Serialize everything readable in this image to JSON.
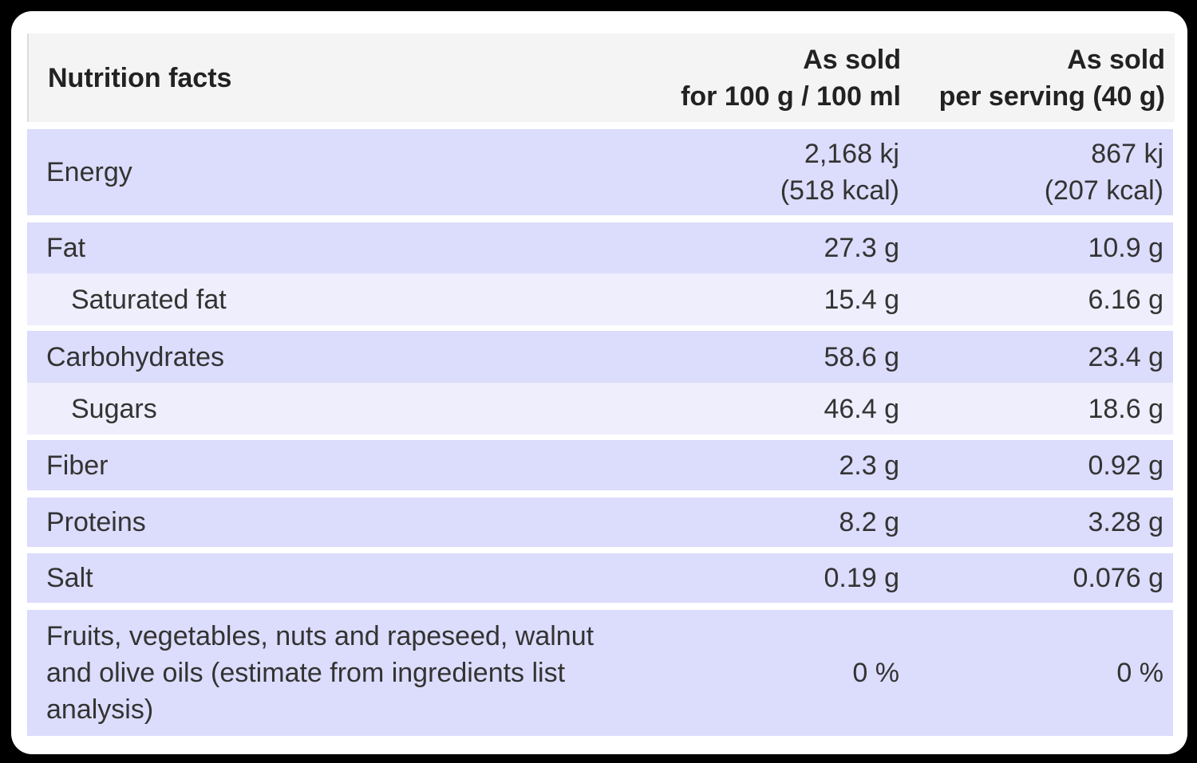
{
  "table": {
    "header": [
      [
        "Nutrition facts"
      ],
      [
        "As sold",
        "for 100 g / 100 ml"
      ],
      [
        "As sold",
        "per serving (40 g)"
      ]
    ],
    "rows": [
      [
        [
          "Energy"
        ],
        [
          "2,168 kj",
          "(518 kcal)"
        ],
        [
          "867 kj",
          "(207 kcal)"
        ]
      ],
      [
        [
          "Fat"
        ],
        [
          "27.3 g"
        ],
        [
          "10.9 g"
        ]
      ],
      [
        [
          "Saturated fat"
        ],
        [
          "15.4 g"
        ],
        [
          "6.16 g"
        ]
      ],
      [
        [
          "Carbohydrates"
        ],
        [
          "58.6 g"
        ],
        [
          "23.4 g"
        ]
      ],
      [
        [
          "Sugars"
        ],
        [
          "46.4 g"
        ],
        [
          "18.6 g"
        ]
      ],
      [
        [
          "Fiber"
        ],
        [
          "2.3 g"
        ],
        [
          "0.92 g"
        ]
      ],
      [
        [
          "Proteins"
        ],
        [
          "8.2 g"
        ],
        [
          "3.28 g"
        ]
      ],
      [
        [
          "Salt"
        ],
        [
          "0.19 g"
        ],
        [
          "0.076 g"
        ]
      ],
      [
        [
          "Fruits, vegetables, nuts and rapeseed, walnut",
          "and olive oils (estimate from ingredients list",
          "analysis)"
        ],
        [
          "0 %"
        ],
        [
          "0 %"
        ]
      ]
    ]
  }
}
